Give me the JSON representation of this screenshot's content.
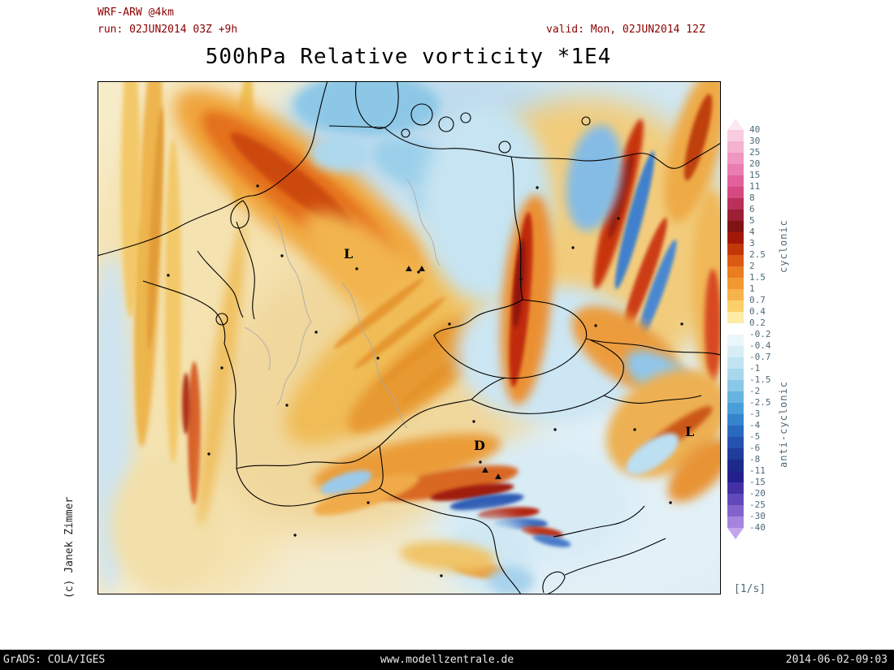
{
  "header": {
    "model_label": "WRF-ARW @4km",
    "run_label": "run: 02JUN2014 03Z +9h",
    "valid_label": "valid: Mon, 02JUN2014 12Z",
    "title": "500hPa Relative vorticity *1E4"
  },
  "map": {
    "credit": "(c) Janek Zimmer",
    "labels": [
      {
        "text": "L"
      },
      {
        "text": "D"
      },
      {
        "text": "L"
      }
    ]
  },
  "colorbar": {
    "unit": "[1/s]",
    "cyclonic_label": "cyclonic",
    "anticyclonic_label": "anti-cyclonic",
    "tick_labels": [
      "40",
      "30",
      "25",
      "20",
      "15",
      "11",
      "8",
      "6",
      "5",
      "4",
      "3",
      "2.5",
      "2",
      "1.5",
      "1",
      "0.7",
      "0.4",
      "0.2",
      "-0.2",
      "-0.4",
      "-0.7",
      "-1",
      "-1.5",
      "-2",
      "-2.5",
      "-3",
      "-4",
      "-5",
      "-6",
      "-8",
      "-11",
      "-15",
      "-20",
      "-25",
      "-30",
      "-40"
    ],
    "colors": [
      "#fce8f0",
      "#f8cde0",
      "#f4b2d0",
      "#ef97c0",
      "#e97cb0",
      "#e2609c",
      "#d44a80",
      "#b93058",
      "#9a2034",
      "#801414",
      "#a11808",
      "#c23708",
      "#da5a14",
      "#ea7c22",
      "#f29833",
      "#f6b24c",
      "#fbd06a",
      "#fdeba6",
      "#ffffff",
      "#eaf6fa",
      "#d8eef7",
      "#c2e4f2",
      "#a8d8ee",
      "#8ac8e8",
      "#68b4e0",
      "#4a9ed8",
      "#3584cc",
      "#2a6abe",
      "#2452ae",
      "#203c9c",
      "#1c2a8a",
      "#251f8e",
      "#4430a6",
      "#6348ba",
      "#8362cc",
      "#a585dc",
      "#c4a6ec"
    ]
  },
  "footer": {
    "left": "GrADS: COLA/IGES",
    "center": "www.modellzentrale.de",
    "right": "2014-06-02-09:03"
  }
}
